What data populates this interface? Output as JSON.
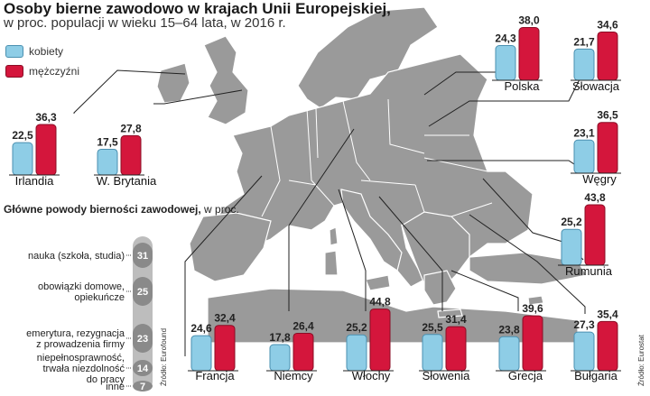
{
  "header": {
    "title": "Osoby bierne zawodowo w krajach Unii Europejskiej,",
    "subtitle": "w proc. populacji w wieku 15–64 lata, w 2016 r."
  },
  "legend": {
    "women": "kobiety",
    "men": "mężczyźni"
  },
  "colors": {
    "women": "#8ecde6",
    "men": "#d4163c",
    "map": "#9a9a9a",
    "reason_circle": "#8a8a8a"
  },
  "chart_data": {
    "type": "bar",
    "title": "Osoby bierne zawodowo w krajach Unii Europejskiej,",
    "subtitle": "w proc. populacji w wieku 15–64 lata, w 2016 r.",
    "series_labels": [
      "kobiety",
      "mężczyźni"
    ],
    "countries": [
      {
        "name": "Irlandia",
        "women": "22,5",
        "men": "36,3"
      },
      {
        "name": "W. Brytania",
        "women": "17,5",
        "men": "27,8"
      },
      {
        "name": "Polska",
        "women": "24,3",
        "men": "38,0"
      },
      {
        "name": "Słowacja",
        "women": "21,7",
        "men": "34,6"
      },
      {
        "name": "Węgry",
        "women": "23,1",
        "men": "36,5"
      },
      {
        "name": "Rumunia",
        "women": "25,2",
        "men": "43,8"
      },
      {
        "name": "Francja",
        "women": "24,6",
        "men": "32,4"
      },
      {
        "name": "Niemcy",
        "women": "17,8",
        "men": "26,4"
      },
      {
        "name": "Włochy",
        "women": "25,2",
        "men": "44,8"
      },
      {
        "name": "Słowenia",
        "women": "25,5",
        "men": "31,4"
      },
      {
        "name": "Grecja",
        "women": "23,8",
        "men": "39,6"
      },
      {
        "name": "Bułgaria",
        "women": "27,3",
        "men": "35,4"
      }
    ]
  },
  "reasons": {
    "title_bold": "Główne powody bierności zawodowej,",
    "title_rest": " w proc.",
    "items": [
      {
        "label": [
          "nauka (szkoła, studia)"
        ],
        "value": "31"
      },
      {
        "label": [
          "obowiązki domowe,",
          "opiekuńcze"
        ],
        "value": "25"
      },
      {
        "label": [
          "emerytura, rezygnacja",
          "z prowadzenia firmy"
        ],
        "value": "23"
      },
      {
        "label": [
          "niepełnosprawność,",
          "trwała niezdolność",
          "do pracy"
        ],
        "value": "14"
      },
      {
        "label": [
          "inne"
        ],
        "value": "7"
      }
    ],
    "source": "Źródło: Eurofound"
  },
  "footer": {
    "source": "Źródło: Eurostat"
  }
}
